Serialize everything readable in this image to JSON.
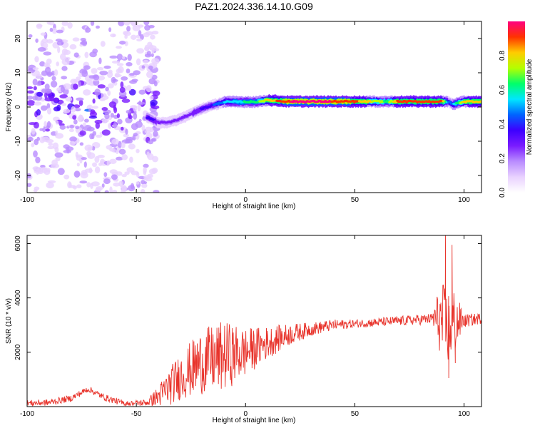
{
  "title": "PAZ1.2024.336.14.10.G09",
  "colors": {
    "frame": "#000000",
    "snr_line": "#e8332b",
    "colormap": [
      "#ffffff",
      "#e9d2ff",
      "#b98cff",
      "#7a1cff",
      "#3d00ff",
      "#0064ff",
      "#00e6ff",
      "#00ff6a",
      "#b4ff00",
      "#ffcc00",
      "#ff3300",
      "#ff0080"
    ]
  },
  "chart_data": [
    {
      "type": "heatmap",
      "xlabel": "Height of straight line (km)",
      "ylabel": "Frequency (Hz)",
      "xlim": [
        -100,
        108
      ],
      "ylim": [
        -25,
        25
      ],
      "xticks": [
        -100,
        -50,
        0,
        50,
        100
      ],
      "yticks": [
        -20,
        -10,
        0,
        10,
        20
      ],
      "colorbar": {
        "label": "Normalized spectral amplitude",
        "range": [
          0,
          1
        ],
        "ticks": [
          0.0,
          0.2,
          0.4,
          0.6,
          0.8
        ]
      },
      "ridge": {
        "x": [
          -45,
          -40,
          -35,
          -30,
          -25,
          -20,
          -15,
          -10,
          -5,
          0,
          5,
          10,
          20,
          30,
          50,
          65,
          70,
          90,
          93,
          95,
          100,
          108
        ],
        "freq": [
          -3,
          -4.5,
          -4.5,
          -3.5,
          -2,
          -0.5,
          0.5,
          1.5,
          1.5,
          1.5,
          1.5,
          2,
          1.6,
          1.6,
          1.6,
          1.6,
          1.6,
          1.6,
          1.5,
          0.8,
          1.6,
          1.6
        ],
        "amplitude": [
          0.35,
          0.3,
          0.28,
          0.3,
          0.3,
          0.32,
          0.4,
          0.5,
          0.55,
          0.6,
          0.65,
          0.8,
          0.95,
          1.0,
          0.9,
          0.65,
          0.9,
          0.9,
          0.45,
          0.5,
          0.8,
          0.85
        ]
      },
      "noise_region_x": [
        -100,
        -45
      ]
    },
    {
      "type": "line",
      "xlabel": "Height of straight line (km)",
      "ylabel": "SNR (10 * v/v)",
      "xlim": [
        -100,
        108
      ],
      "ylim": [
        0,
        6300
      ],
      "xticks": [
        -100,
        -50,
        0,
        50,
        100
      ],
      "yticks": [
        2000,
        4000,
        6000
      ],
      "trend": {
        "x": [
          -100,
          -90,
          -80,
          -72,
          -65,
          -55,
          -45,
          -40,
          -30,
          -20,
          -10,
          0,
          10,
          20,
          30,
          40,
          50,
          60,
          70,
          80,
          88,
          92,
          96,
          100,
          108
        ],
        "y": [
          120,
          150,
          300,
          650,
          350,
          100,
          150,
          350,
          1100,
          1650,
          1850,
          2000,
          2350,
          2650,
          2850,
          3000,
          3050,
          3100,
          3150,
          3200,
          3250,
          2900,
          3100,
          3150,
          3250
        ]
      },
      "noise_amplitude": {
        "x": [
          -100,
          -45,
          -35,
          -20,
          -10,
          0,
          10,
          20,
          30,
          50,
          85,
          90,
          95,
          100,
          108
        ],
        "y": [
          120,
          120,
          700,
          1200,
          1300,
          900,
          600,
          400,
          250,
          150,
          200,
          1500,
          1400,
          250,
          200
        ]
      },
      "spikes": [
        {
          "x": 91.5,
          "y": 6300
        },
        {
          "x": 93.0,
          "y": 1050
        },
        {
          "x": 94.5,
          "y": 5950
        },
        {
          "x": 96.0,
          "y": 1600
        }
      ]
    }
  ]
}
